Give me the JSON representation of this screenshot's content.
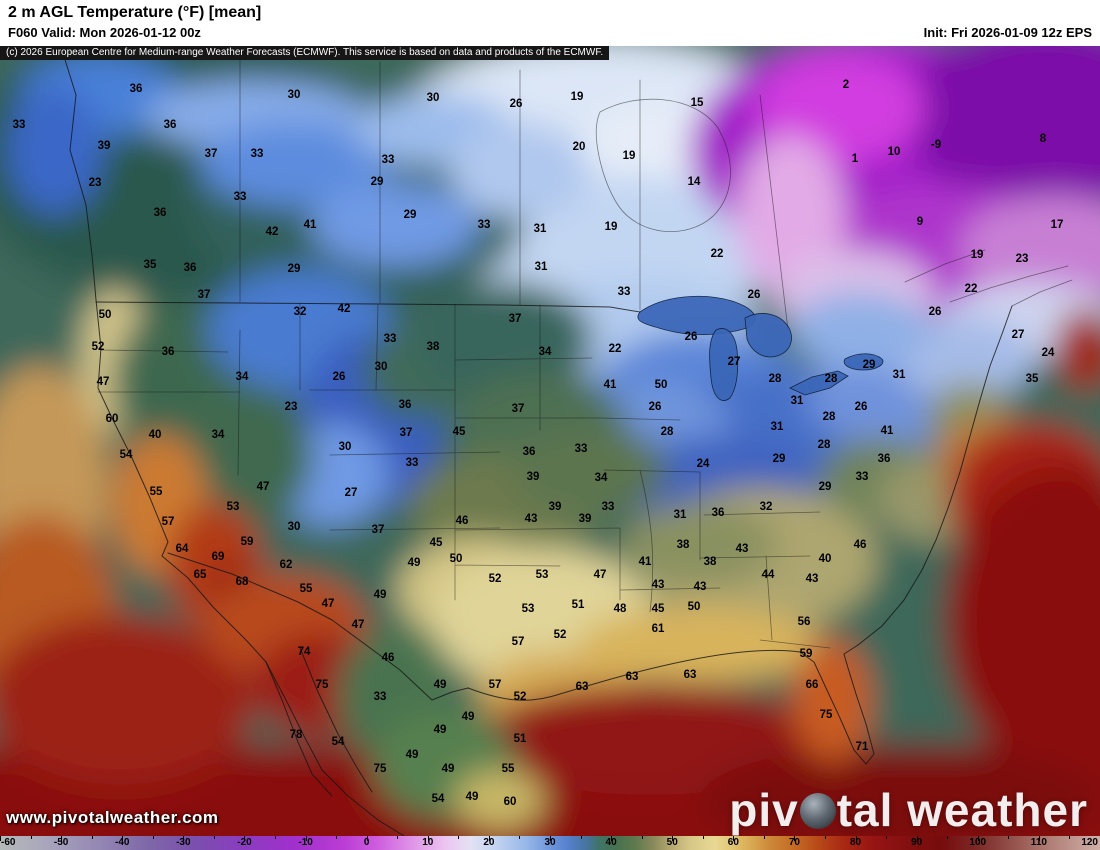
{
  "header": {
    "title": "2 m AGL Temperature (°F) [mean]",
    "valid": "F060 Valid: Mon 2026-01-12 00z",
    "init": "Init: Fri 2026-01-09 12z EPS"
  },
  "copyright": "(c) 2026 European Centre for Medium-range Weather Forecasts (ECMWF). This service is based on data and products of the ECMWF.",
  "watermark": "www.pivotalweather.com",
  "logo": {
    "part1": "piv",
    "part2": "tal weather"
  },
  "colorbar": {
    "units": "°F",
    "min": -60,
    "max": 120,
    "tick_values": [
      -60,
      -50,
      -40,
      -30,
      -20,
      -10,
      0,
      10,
      20,
      30,
      40,
      50,
      60,
      70,
      80,
      90,
      100,
      110,
      120
    ],
    "stops": [
      [
        -60,
        "#b4bab8"
      ],
      [
        -52,
        "#a8a4bc"
      ],
      [
        -44,
        "#9488b4"
      ],
      [
        -36,
        "#7f68a8"
      ],
      [
        -28,
        "#7a4fae"
      ],
      [
        -20,
        "#8c3cc0"
      ],
      [
        -12,
        "#a030cc"
      ],
      [
        -4,
        "#b93cd4"
      ],
      [
        2,
        "#cf5fde"
      ],
      [
        8,
        "#e09ae8"
      ],
      [
        13,
        "#ecc6f0"
      ],
      [
        17,
        "#e4e2f4"
      ],
      [
        21,
        "#c4d4f0"
      ],
      [
        26,
        "#98b8e8"
      ],
      [
        30,
        "#6f96dc"
      ],
      [
        33,
        "#5580cc"
      ],
      [
        36,
        "#47749e"
      ],
      [
        38,
        "#3f7468"
      ],
      [
        41,
        "#48724f"
      ],
      [
        44,
        "#5f7a4e"
      ],
      [
        47,
        "#8a8a5c"
      ],
      [
        50,
        "#b8aa70"
      ],
      [
        53,
        "#d8c888"
      ],
      [
        57,
        "#e8d894"
      ],
      [
        60,
        "#e2c470"
      ],
      [
        63,
        "#d8a852"
      ],
      [
        66,
        "#cc8838"
      ],
      [
        70,
        "#c46a24"
      ],
      [
        74,
        "#b84818"
      ],
      [
        78,
        "#a82814"
      ],
      [
        83,
        "#961414"
      ],
      [
        88,
        "#841010"
      ],
      [
        94,
        "#760c0c"
      ],
      [
        100,
        "#7c2a28"
      ],
      [
        106,
        "#96544e"
      ],
      [
        112,
        "#b08078"
      ],
      [
        120,
        "#d0b0a8"
      ]
    ]
  },
  "stations": [
    [
      36,
      136,
      92
    ],
    [
      30,
      294,
      98
    ],
    [
      30,
      433,
      101
    ],
    [
      26,
      516,
      107
    ],
    [
      19,
      577,
      100
    ],
    [
      15,
      697,
      106
    ],
    [
      2,
      846,
      88
    ],
    [
      33,
      19,
      128
    ],
    [
      36,
      170,
      128
    ],
    [
      39,
      104,
      149
    ],
    [
      37,
      211,
      157
    ],
    [
      33,
      257,
      157
    ],
    [
      33,
      388,
      163
    ],
    [
      20,
      579,
      150
    ],
    [
      19,
      629,
      159
    ],
    [
      1,
      855,
      162
    ],
    [
      10,
      894,
      155
    ],
    [
      -9,
      936,
      148
    ],
    [
      8,
      1043,
      142
    ],
    [
      23,
      95,
      186
    ],
    [
      29,
      377,
      185
    ],
    [
      14,
      694,
      185
    ],
    [
      36,
      160,
      216
    ],
    [
      33,
      240,
      200
    ],
    [
      29,
      410,
      218
    ],
    [
      33,
      484,
      228
    ],
    [
      31,
      540,
      232
    ],
    [
      19,
      611,
      230
    ],
    [
      9,
      920,
      225
    ],
    [
      17,
      1057,
      228
    ],
    [
      42,
      272,
      235
    ],
    [
      41,
      310,
      228
    ],
    [
      22,
      717,
      257
    ],
    [
      19,
      977,
      258
    ],
    [
      23,
      1022,
      262
    ],
    [
      35,
      150,
      268
    ],
    [
      36,
      190,
      271
    ],
    [
      29,
      294,
      272
    ],
    [
      31,
      541,
      270
    ],
    [
      33,
      624,
      295
    ],
    [
      26,
      754,
      298
    ],
    [
      22,
      971,
      292
    ],
    [
      37,
      204,
      298
    ],
    [
      50,
      105,
      318
    ],
    [
      32,
      300,
      315
    ],
    [
      42,
      344,
      312
    ],
    [
      37,
      515,
      322
    ],
    [
      26,
      935,
      315
    ],
    [
      27,
      1018,
      338
    ],
    [
      52,
      98,
      350
    ],
    [
      36,
      168,
      355
    ],
    [
      33,
      390,
      342
    ],
    [
      38,
      433,
      350
    ],
    [
      34,
      545,
      355
    ],
    [
      22,
      615,
      352
    ],
    [
      26,
      691,
      340
    ],
    [
      27,
      734,
      365
    ],
    [
      24,
      1048,
      356
    ],
    [
      47,
      103,
      385
    ],
    [
      34,
      242,
      380
    ],
    [
      26,
      339,
      380
    ],
    [
      30,
      381,
      370
    ],
    [
      41,
      610,
      388
    ],
    [
      50,
      661,
      388
    ],
    [
      28,
      775,
      382
    ],
    [
      28,
      831,
      382
    ],
    [
      29,
      869,
      368
    ],
    [
      31,
      899,
      378
    ],
    [
      35,
      1032,
      382
    ],
    [
      23,
      291,
      410
    ],
    [
      36,
      405,
      408
    ],
    [
      37,
      518,
      412
    ],
    [
      26,
      655,
      410
    ],
    [
      31,
      797,
      404
    ],
    [
      26,
      861,
      410
    ],
    [
      28,
      829,
      420
    ],
    [
      60,
      112,
      422
    ],
    [
      40,
      155,
      438
    ],
    [
      34,
      218,
      438
    ],
    [
      37,
      406,
      436
    ],
    [
      45,
      459,
      435
    ],
    [
      28,
      667,
      435
    ],
    [
      31,
      777,
      430
    ],
    [
      41,
      887,
      434
    ],
    [
      28,
      824,
      448
    ],
    [
      54,
      126,
      458
    ],
    [
      30,
      345,
      450
    ],
    [
      33,
      412,
      466
    ],
    [
      36,
      529,
      455
    ],
    [
      33,
      581,
      452
    ],
    [
      24,
      703,
      467
    ],
    [
      29,
      779,
      462
    ],
    [
      36,
      884,
      462
    ],
    [
      39,
      533,
      480
    ],
    [
      34,
      601,
      481
    ],
    [
      55,
      156,
      495
    ],
    [
      47,
      263,
      490
    ],
    [
      27,
      351,
      496
    ],
    [
      29,
      825,
      490
    ],
    [
      33,
      862,
      480
    ],
    [
      39,
      555,
      510
    ],
    [
      33,
      608,
      510
    ],
    [
      53,
      233,
      510
    ],
    [
      32,
      766,
      510
    ],
    [
      57,
      168,
      525
    ],
    [
      30,
      294,
      530
    ],
    [
      37,
      378,
      533
    ],
    [
      46,
      462,
      524
    ],
    [
      43,
      531,
      522
    ],
    [
      39,
      585,
      522
    ],
    [
      31,
      680,
      518
    ],
    [
      36,
      718,
      516
    ],
    [
      59,
      247,
      545
    ],
    [
      64,
      182,
      552
    ],
    [
      69,
      218,
      560
    ],
    [
      45,
      436,
      546
    ],
    [
      38,
      683,
      548
    ],
    [
      43,
      742,
      552
    ],
    [
      46,
      860,
      548
    ],
    [
      50,
      456,
      562
    ],
    [
      49,
      414,
      566
    ],
    [
      41,
      645,
      565
    ],
    [
      38,
      710,
      565
    ],
    [
      40,
      825,
      562
    ],
    [
      62,
      286,
      568
    ],
    [
      65,
      200,
      578
    ],
    [
      68,
      242,
      585
    ],
    [
      52,
      495,
      582
    ],
    [
      53,
      542,
      578
    ],
    [
      47,
      600,
      578
    ],
    [
      44,
      768,
      578
    ],
    [
      43,
      812,
      582
    ],
    [
      55,
      306,
      592
    ],
    [
      43,
      658,
      588
    ],
    [
      43,
      700,
      590
    ],
    [
      49,
      380,
      598
    ],
    [
      47,
      328,
      607
    ],
    [
      53,
      528,
      612
    ],
    [
      51,
      578,
      608
    ],
    [
      48,
      620,
      612
    ],
    [
      45,
      658,
      612
    ],
    [
      50,
      694,
      610
    ],
    [
      47,
      358,
      628
    ],
    [
      57,
      518,
      645
    ],
    [
      52,
      560,
      638
    ],
    [
      61,
      658,
      632
    ],
    [
      56,
      804,
      625
    ],
    [
      46,
      388,
      661
    ],
    [
      59,
      806,
      657
    ],
    [
      74,
      304,
      655
    ],
    [
      75,
      322,
      688
    ],
    [
      33,
      380,
      700
    ],
    [
      49,
      440,
      688
    ],
    [
      57,
      495,
      688
    ],
    [
      52,
      520,
      700
    ],
    [
      63,
      582,
      690
    ],
    [
      63,
      632,
      680
    ],
    [
      63,
      690,
      678
    ],
    [
      66,
      812,
      688
    ],
    [
      75,
      826,
      718
    ],
    [
      49,
      468,
      720
    ],
    [
      49,
      440,
      733
    ],
    [
      78,
      296,
      738
    ],
    [
      54,
      338,
      745
    ],
    [
      51,
      520,
      742
    ],
    [
      71,
      862,
      750
    ],
    [
      75,
      380,
      772
    ],
    [
      49,
      412,
      758
    ],
    [
      49,
      448,
      772
    ],
    [
      55,
      508,
      772
    ],
    [
      54,
      438,
      802
    ],
    [
      49,
      472,
      800
    ],
    [
      60,
      510,
      805
    ]
  ]
}
